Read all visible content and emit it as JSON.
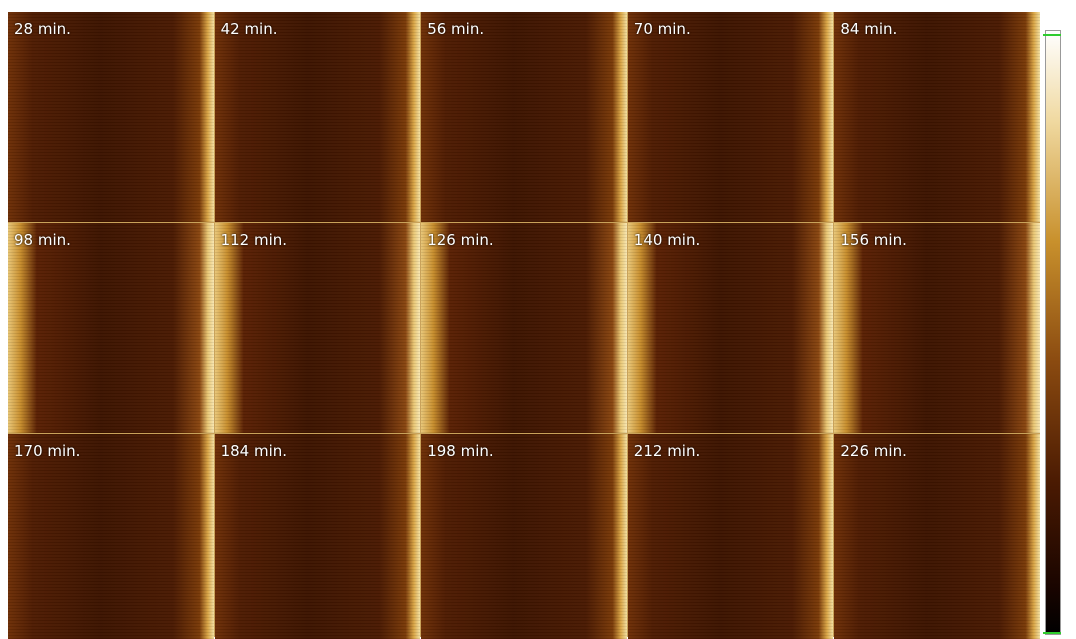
{
  "panels": [
    {
      "label": "28 min."
    },
    {
      "label": "42 min."
    },
    {
      "label": "56 min."
    },
    {
      "label": "70 min."
    },
    {
      "label": "84 min."
    },
    {
      "label": "98 min."
    },
    {
      "label": "112 min."
    },
    {
      "label": "126 min."
    },
    {
      "label": "140 min."
    },
    {
      "label": "156 min."
    },
    {
      "label": "170 min."
    },
    {
      "label": "184 min."
    },
    {
      "label": "198 min."
    },
    {
      "label": "212 min."
    },
    {
      "label": "226 min."
    }
  ]
}
